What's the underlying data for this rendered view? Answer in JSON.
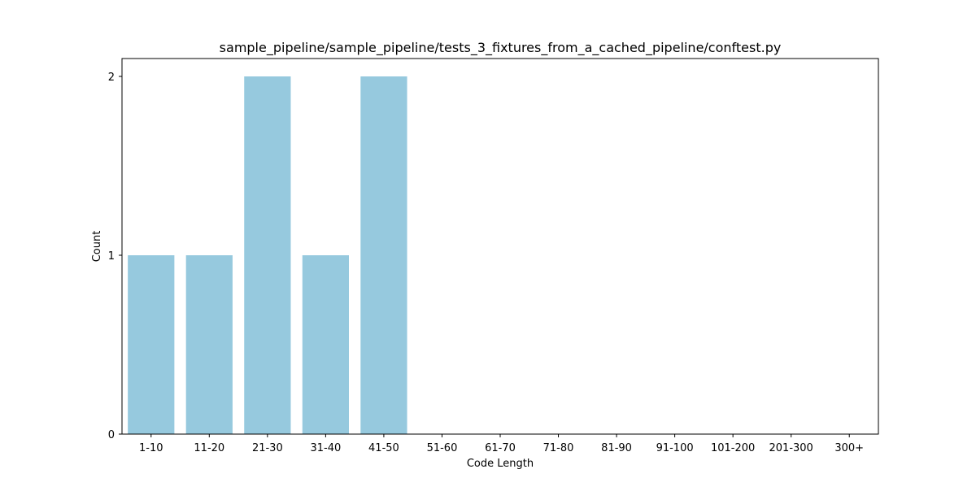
{
  "chart_data": {
    "type": "bar",
    "title": "sample_pipeline/sample_pipeline/tests_3_fixtures_from_a_cached_pipeline/conftest.py",
    "xlabel": "Code Length",
    "ylabel": "Count",
    "categories": [
      "1-10",
      "11-20",
      "21-30",
      "31-40",
      "41-50",
      "51-60",
      "61-70",
      "71-80",
      "81-90",
      "91-100",
      "101-200",
      "201-300",
      "300+"
    ],
    "values": [
      1,
      1,
      2,
      1,
      2,
      0,
      0,
      0,
      0,
      0,
      0,
      0,
      0
    ],
    "ylim": [
      0,
      2.1
    ],
    "yticks": [
      0,
      1,
      2
    ],
    "bar_color": "#96c9de",
    "grid": false,
    "legend": "none"
  }
}
